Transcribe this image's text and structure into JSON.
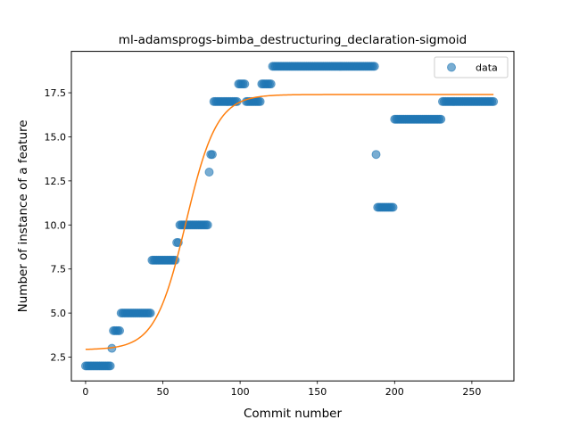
{
  "chart_data": {
    "type": "scatter",
    "title": "ml-adamsprogs-bimba_destructuring_declaration-sigmoid",
    "xlabel": "Commit number",
    "ylabel": "Number of instance of a feature",
    "xlim": [
      -9.2,
      277.2
    ],
    "ylim": [
      1.15,
      19.85
    ],
    "x_ticks": [
      0,
      50,
      100,
      150,
      200,
      250
    ],
    "x_tick_labels": [
      "0",
      "50",
      "100",
      "150",
      "200",
      "250"
    ],
    "y_ticks": [
      2.5,
      5.0,
      7.5,
      10.0,
      12.5,
      15.0,
      17.5
    ],
    "y_tick_labels": [
      "2.5",
      "5.0",
      "7.5",
      "10.0",
      "12.5",
      "15.0",
      "17.5"
    ],
    "grid": false,
    "legend_position": "top-right",
    "series": [
      {
        "name": "data",
        "kind": "scatter",
        "color": "#1f77b4",
        "segments": [
          {
            "x_start": 0,
            "x_end": 16,
            "y": 2
          },
          {
            "x_start": 17,
            "x_end": 17,
            "y": 3
          },
          {
            "x_start": 18,
            "x_end": 22,
            "y": 4
          },
          {
            "x_start": 23,
            "x_end": 42,
            "y": 5
          },
          {
            "x_start": 43,
            "x_end": 58,
            "y": 8
          },
          {
            "x_start": 59,
            "x_end": 60,
            "y": 9
          },
          {
            "x_start": 61,
            "x_end": 79,
            "y": 10
          },
          {
            "x_start": 80,
            "x_end": 80,
            "y": 13
          },
          {
            "x_start": 81,
            "x_end": 82,
            "y": 14
          },
          {
            "x_start": 83,
            "x_end": 98,
            "y": 17
          },
          {
            "x_start": 99,
            "x_end": 103,
            "y": 18
          },
          {
            "x_start": 104,
            "x_end": 113,
            "y": 17
          },
          {
            "x_start": 114,
            "x_end": 120,
            "y": 18
          },
          {
            "x_start": 121,
            "x_end": 187,
            "y": 19
          },
          {
            "x_start": 188,
            "x_end": 188,
            "y": 14
          },
          {
            "x_start": 189,
            "x_end": 199,
            "y": 11
          },
          {
            "x_start": 200,
            "x_end": 230,
            "y": 16
          },
          {
            "x_start": 231,
            "x_end": 264,
            "y": 17
          }
        ]
      },
      {
        "name": "",
        "kind": "line",
        "color": "#ff7f0e",
        "model": "sigmoid",
        "params": {
          "lower": 2.92,
          "upper": 17.4,
          "midpoint": 65,
          "rate": 0.1
        },
        "x_range": [
          0,
          264
        ]
      }
    ]
  }
}
